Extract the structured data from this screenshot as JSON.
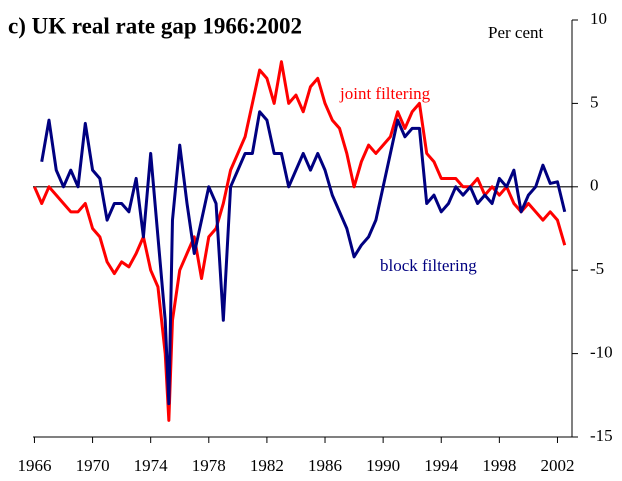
{
  "chart_data": {
    "type": "line",
    "title": "c) UK real rate gap 1966:2002",
    "y_axis_label": "Per cent",
    "annotations": [
      "joint filtering",
      "block filtering"
    ],
    "x": [
      1966,
      1966.5,
      1967,
      1967.5,
      1968,
      1968.5,
      1969,
      1969.5,
      1970,
      1970.5,
      1971,
      1971.5,
      1972,
      1972.5,
      1973,
      1973.5,
      1974,
      1974.5,
      1975,
      1975.25,
      1975.5,
      1976,
      1976.5,
      1977,
      1977.5,
      1978,
      1978.5,
      1979,
      1979.5,
      1980,
      1980.5,
      1981,
      1981.5,
      1982,
      1982.5,
      1983,
      1983.5,
      1984,
      1984.5,
      1985,
      1985.5,
      1986,
      1986.5,
      1987,
      1987.5,
      1988,
      1988.5,
      1989,
      1989.5,
      1990,
      1990.5,
      1991,
      1991.5,
      1992,
      1992.5,
      1993,
      1993.5,
      1994,
      1994.5,
      1995,
      1995.5,
      1996,
      1996.5,
      1997,
      1997.5,
      1998,
      1998.5,
      1999,
      1999.5,
      2000,
      2000.5,
      2001,
      2001.5,
      2002,
      2002.5
    ],
    "series": [
      {
        "name": "joint filtering",
        "color": "#ff0000",
        "values": [
          0,
          -1,
          0,
          -0.5,
          -1,
          -1.5,
          -1.5,
          -1,
          -2.5,
          -3,
          -4.5,
          -5.2,
          -4.5,
          -4.8,
          -4,
          -3,
          -5,
          -6,
          -10,
          -14,
          -8,
          -5,
          -4,
          -3,
          -5.5,
          -3,
          -2.5,
          -1,
          1,
          2,
          3,
          5,
          7,
          6.5,
          5,
          7.5,
          5,
          5.5,
          4.5,
          6,
          6.5,
          5,
          4,
          3.5,
          2,
          0,
          1.5,
          2.5,
          2,
          2.5,
          3,
          4.5,
          3.5,
          4.5,
          5,
          2,
          1.5,
          0.5,
          0.5,
          0.5,
          0,
          0,
          0.5,
          -0.5,
          0,
          -0.5,
          0,
          -1,
          -1.5,
          -1,
          -1.5,
          -2,
          -1.5,
          -2,
          -3.5
        ]
      },
      {
        "name": "block filtering",
        "color": "#000080",
        "values": [
          null,
          1.5,
          4,
          1,
          0,
          1,
          0,
          3.8,
          1,
          0.5,
          -2,
          -1,
          -1,
          -1.5,
          0.5,
          -3,
          2,
          -3,
          -8,
          -13,
          -2,
          2.5,
          -1,
          -4,
          -2,
          0,
          -1,
          -8,
          0,
          1,
          2,
          2,
          4.5,
          4,
          2,
          2,
          0,
          1,
          2,
          1,
          2,
          1,
          -0.5,
          -1.5,
          -2.5,
          -4.2,
          -3.5,
          -3,
          -2,
          0,
          2,
          4,
          3,
          3.5,
          3.5,
          -1,
          -0.5,
          -1.5,
          -1,
          0,
          -0.5,
          0,
          -1,
          -0.5,
          -1,
          0.5,
          0,
          1,
          -1.5,
          -0.5,
          0,
          1.3,
          0.2,
          0.3,
          -1.5
        ]
      }
    ],
    "xlim": [
      1965.9,
      2003
    ],
    "xticks": [
      1966,
      1970,
      1974,
      1978,
      1982,
      1986,
      1990,
      1994,
      1998,
      2002
    ],
    "ylim": [
      -15,
      10
    ],
    "yticks": [
      -15,
      -10,
      -5,
      0,
      5,
      10
    ]
  }
}
